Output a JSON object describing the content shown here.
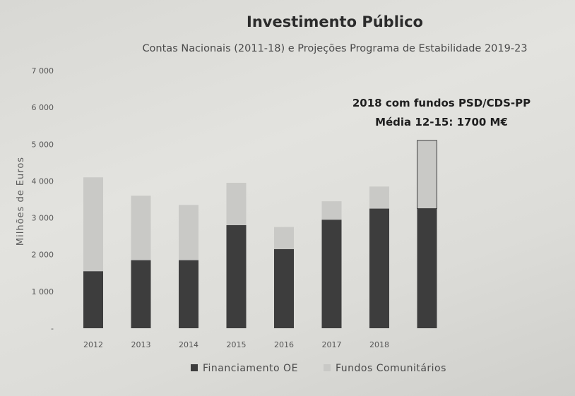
{
  "chart_data": {
    "type": "bar",
    "stacked": true,
    "title": "Investimento Público",
    "subtitle": "Contas Nacionais (2011-18) e Projeções Programa de Estabilidade 2019-23",
    "annotations": [
      "2018 com fundos PSD/CDS-PP",
      "Média 12-15: 1700 M€"
    ],
    "ylabel": "Milhões de Euros",
    "xlabel": "",
    "ylim": [
      0,
      7000
    ],
    "yticks": [
      "-",
      "1 000",
      "2 000",
      "3 000",
      "4 000",
      "5 000",
      "6 000",
      "7 000"
    ],
    "categories": [
      "2012",
      "2013",
      "2014",
      "2015",
      "2016",
      "2017",
      "2018",
      ""
    ],
    "series": [
      {
        "name": "Financiamento OE",
        "color": "#3d3d3d",
        "values": [
          1550,
          1850,
          1850,
          2800,
          2150,
          2950,
          3250,
          3250
        ]
      },
      {
        "name": "Fundos Comunitários",
        "color": "#c9c9c6",
        "values": [
          2550,
          1750,
          1500,
          1150,
          600,
          500,
          600,
          1850
        ]
      }
    ],
    "grid": false,
    "legend": "bottom"
  }
}
